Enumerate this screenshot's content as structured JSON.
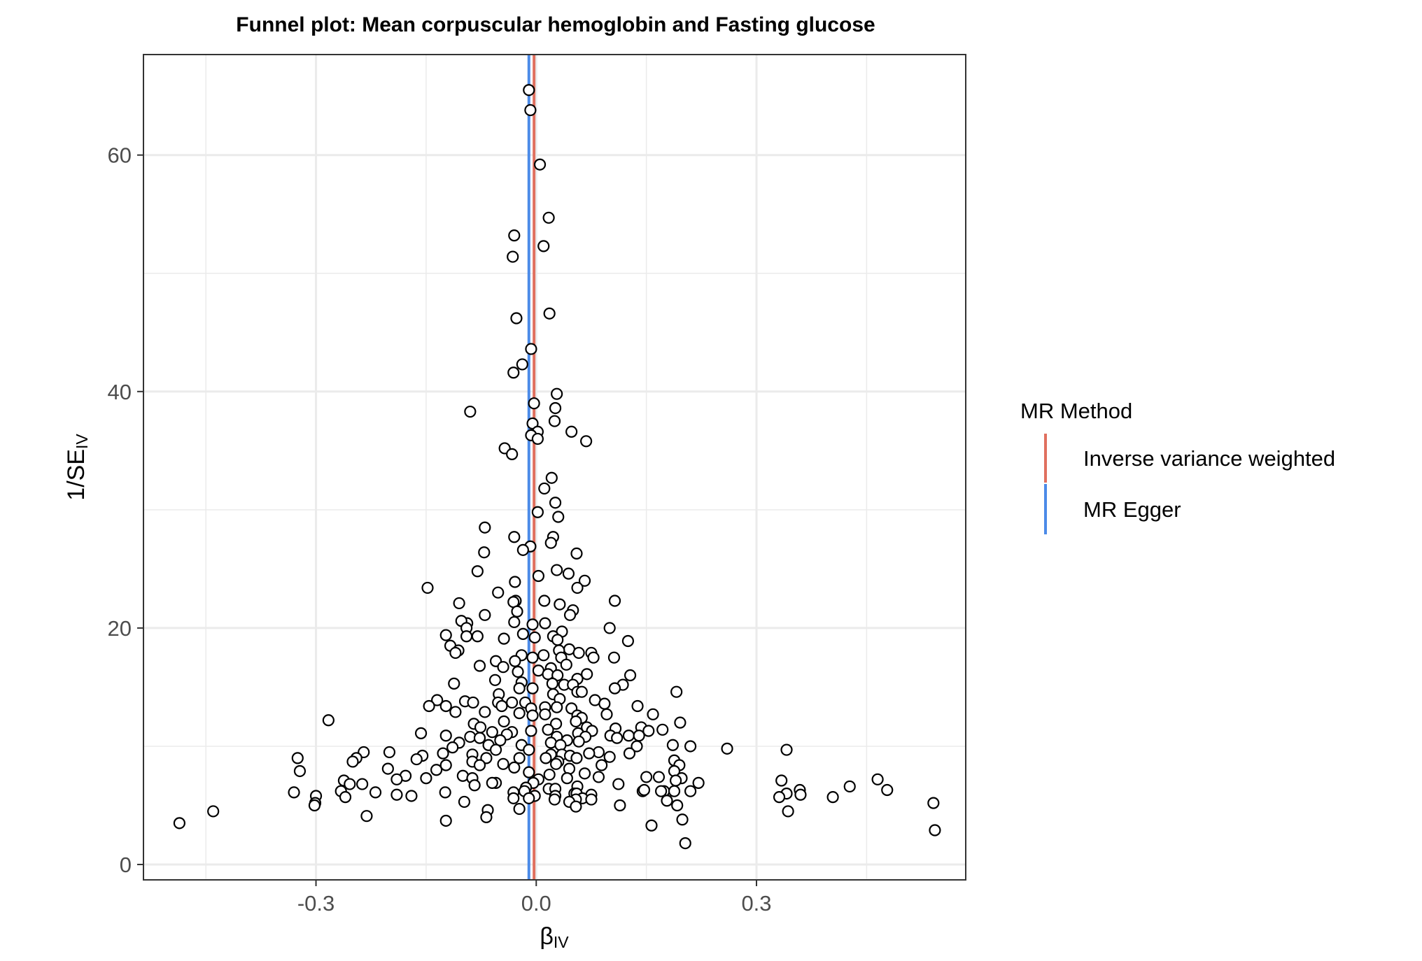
{
  "chart_data": {
    "type": "scatter",
    "title": "Funnel plot: Mean corpuscular hemoglobin and Fasting glucose",
    "xlabel": {
      "main": "β",
      "sub": "IV"
    },
    "ylabel": {
      "main": "1/SE",
      "sub": "IV"
    },
    "xlim": [
      -0.535,
      0.585
    ],
    "ylim": [
      -1.3,
      68.5
    ],
    "x_ticks": [
      -0.3,
      0.0,
      0.3
    ],
    "x_tick_labels": [
      "-0.3",
      "0.0",
      "0.3"
    ],
    "y_ticks": [
      0,
      20,
      40,
      60
    ],
    "y_tick_labels": [
      "0",
      "20",
      "40",
      "60"
    ],
    "grid": true,
    "legend_title": "MR Method",
    "legend_position": "right",
    "reference_lines": [
      {
        "name": "Inverse variance weighted",
        "x": -0.003,
        "color": "#E0705F"
      },
      {
        "name": "MR Egger",
        "x": -0.01,
        "color": "#4C8BE8"
      }
    ],
    "points": [
      [
        -0.01,
        65.5
      ],
      [
        -0.008,
        63.8
      ],
      [
        0.005,
        59.2
      ],
      [
        0.017,
        54.7
      ],
      [
        -0.03,
        53.2
      ],
      [
        -0.032,
        51.4
      ],
      [
        0.01,
        52.3
      ],
      [
        -0.027,
        46.2
      ],
      [
        0.018,
        46.6
      ],
      [
        -0.007,
        43.6
      ],
      [
        -0.019,
        42.3
      ],
      [
        -0.031,
        41.6
      ],
      [
        0.028,
        39.8
      ],
      [
        0.026,
        38.6
      ],
      [
        -0.09,
        38.3
      ],
      [
        -0.003,
        39.0
      ],
      [
        -0.005,
        37.3
      ],
      [
        0.025,
        37.5
      ],
      [
        0.002,
        36.6
      ],
      [
        -0.007,
        36.3
      ],
      [
        0.002,
        36.0
      ],
      [
        0.048,
        36.6
      ],
      [
        0.068,
        35.8
      ],
      [
        -0.043,
        35.2
      ],
      [
        -0.033,
        34.7
      ],
      [
        0.021,
        32.7
      ],
      [
        0.011,
        31.8
      ],
      [
        0.026,
        30.6
      ],
      [
        0.002,
        29.8
      ],
      [
        0.03,
        29.4
      ],
      [
        -0.07,
        28.5
      ],
      [
        -0.03,
        27.7
      ],
      [
        0.023,
        27.7
      ],
      [
        0.02,
        27.2
      ],
      [
        -0.008,
        26.9
      ],
      [
        -0.018,
        26.6
      ],
      [
        -0.071,
        26.4
      ],
      [
        0.055,
        26.3
      ],
      [
        -0.08,
        24.8
      ],
      [
        0.028,
        24.9
      ],
      [
        0.044,
        24.6
      ],
      [
        0.003,
        24.4
      ],
      [
        0.066,
        24.0
      ],
      [
        -0.029,
        23.9
      ],
      [
        -0.148,
        23.4
      ],
      [
        0.056,
        23.4
      ],
      [
        -0.052,
        23.0
      ],
      [
        0.011,
        22.3
      ],
      [
        0.107,
        22.3
      ],
      [
        -0.028,
        22.3
      ],
      [
        -0.105,
        22.1
      ],
      [
        0.032,
        22.0
      ],
      [
        -0.031,
        22.2
      ],
      [
        0.05,
        21.5
      ],
      [
        -0.026,
        21.4
      ],
      [
        0.046,
        21.1
      ],
      [
        -0.07,
        21.1
      ],
      [
        0.012,
        20.4
      ],
      [
        -0.03,
        20.5
      ],
      [
        -0.094,
        20.4
      ],
      [
        -0.102,
        20.6
      ],
      [
        -0.005,
        20.3
      ],
      [
        0.1,
        20.0
      ],
      [
        -0.095,
        20.0
      ],
      [
        0.035,
        19.7
      ],
      [
        -0.123,
        19.4
      ],
      [
        -0.018,
        19.5
      ],
      [
        -0.002,
        19.2
      ],
      [
        -0.095,
        19.3
      ],
      [
        -0.08,
        19.3
      ],
      [
        0.125,
        18.9
      ],
      [
        0.023,
        19.3
      ],
      [
        -0.044,
        19.1
      ],
      [
        0.029,
        19.0
      ],
      [
        -0.117,
        18.5
      ],
      [
        -0.106,
        18.1
      ],
      [
        0.045,
        18.2
      ],
      [
        0.031,
        18.1
      ],
      [
        -0.11,
        17.9
      ],
      [
        0.058,
        17.9
      ],
      [
        0.075,
        17.9
      ],
      [
        -0.02,
        17.7
      ],
      [
        -0.005,
        17.5
      ],
      [
        0.01,
        17.7
      ],
      [
        0.034,
        17.5
      ],
      [
        0.106,
        17.5
      ],
      [
        0.078,
        17.5
      ],
      [
        -0.029,
        17.2
      ],
      [
        -0.055,
        17.2
      ],
      [
        -0.077,
        16.8
      ],
      [
        0.041,
        16.9
      ],
      [
        0.02,
        16.6
      ],
      [
        -0.045,
        16.7
      ],
      [
        0.003,
        16.4
      ],
      [
        -0.025,
        16.3
      ],
      [
        0.016,
        16.1
      ],
      [
        0.029,
        16.0
      ],
      [
        0.069,
        16.1
      ],
      [
        0.128,
        16.0
      ],
      [
        -0.056,
        15.6
      ],
      [
        -0.112,
        15.3
      ],
      [
        0.056,
        15.7
      ],
      [
        -0.02,
        15.4
      ],
      [
        0.022,
        15.3
      ],
      [
        0.038,
        15.2
      ],
      [
        0.05,
        15.2
      ],
      [
        0.118,
        15.2
      ],
      [
        0.107,
        14.9
      ],
      [
        -0.023,
        14.9
      ],
      [
        -0.005,
        14.9
      ],
      [
        0.056,
        14.6
      ],
      [
        -0.051,
        14.4
      ],
      [
        0.062,
        14.6
      ],
      [
        0.191,
        14.6
      ],
      [
        0.023,
        14.4
      ],
      [
        -0.135,
        13.9
      ],
      [
        0.032,
        14.0
      ],
      [
        -0.052,
        13.7
      ],
      [
        -0.097,
        13.8
      ],
      [
        -0.086,
        13.7
      ],
      [
        0.08,
        13.9
      ],
      [
        -0.015,
        13.7
      ],
      [
        -0.033,
        13.7
      ],
      [
        -0.146,
        13.4
      ],
      [
        0.093,
        13.6
      ],
      [
        -0.123,
        13.4
      ],
      [
        0.138,
        13.4
      ],
      [
        0.028,
        13.3
      ],
      [
        -0.007,
        13.2
      ],
      [
        -0.047,
        13.4
      ],
      [
        0.012,
        13.3
      ],
      [
        0.048,
        13.2
      ],
      [
        -0.07,
        12.9
      ],
      [
        -0.023,
        12.8
      ],
      [
        -0.11,
        12.9
      ],
      [
        0.056,
        12.6
      ],
      [
        0.062,
        12.4
      ],
      [
        0.159,
        12.7
      ],
      [
        0.096,
        12.7
      ],
      [
        0.012,
        12.7
      ],
      [
        -0.005,
        12.6
      ],
      [
        -0.283,
        12.2
      ],
      [
        0.196,
        12.0
      ],
      [
        -0.044,
        12.1
      ],
      [
        0.054,
        12.1
      ],
      [
        0.027,
        11.9
      ],
      [
        -0.085,
        11.9
      ],
      [
        0.069,
        11.6
      ],
      [
        0.143,
        11.6
      ],
      [
        -0.076,
        11.6
      ],
      [
        0.108,
        11.5
      ],
      [
        0.016,
        11.4
      ],
      [
        0.153,
        11.3
      ],
      [
        -0.06,
        11.2
      ],
      [
        -0.033,
        11.2
      ],
      [
        0.076,
        11.3
      ],
      [
        0.172,
        11.4
      ],
      [
        -0.007,
        11.3
      ],
      [
        -0.157,
        11.1
      ],
      [
        0.057,
        11.1
      ],
      [
        -0.04,
        11.0
      ],
      [
        0.126,
        10.9
      ],
      [
        -0.123,
        10.9
      ],
      [
        0.14,
        10.9
      ],
      [
        -0.09,
        10.8
      ],
      [
        0.028,
        10.8
      ],
      [
        0.101,
        10.9
      ],
      [
        0.067,
        10.8
      ],
      [
        0.11,
        10.7
      ],
      [
        -0.077,
        10.7
      ],
      [
        0.042,
        10.5
      ],
      [
        -0.049,
        10.5
      ],
      [
        -0.105,
        10.3
      ],
      [
        0.02,
        10.3
      ],
      [
        0.058,
        10.4
      ],
      [
        -0.02,
        10.1
      ],
      [
        0.033,
        10.1
      ],
      [
        -0.065,
        10.1
      ],
      [
        0.186,
        10.1
      ],
      [
        0.21,
        10.0
      ],
      [
        0.137,
        10.0
      ],
      [
        -0.114,
        9.9
      ],
      [
        0.26,
        9.8
      ],
      [
        0.341,
        9.7
      ],
      [
        -0.055,
        9.7
      ],
      [
        -0.01,
        9.7
      ],
      [
        0.085,
        9.5
      ],
      [
        -0.2,
        9.5
      ],
      [
        -0.235,
        9.5
      ],
      [
        0.072,
        9.4
      ],
      [
        0.127,
        9.4
      ],
      [
        -0.127,
        9.4
      ],
      [
        0.035,
        9.3
      ],
      [
        0.02,
        9.3
      ],
      [
        -0.155,
        9.2
      ],
      [
        -0.087,
        9.3
      ],
      [
        0.046,
        9.2
      ],
      [
        0.1,
        9.1
      ],
      [
        -0.325,
        9.0
      ],
      [
        -0.245,
        9.0
      ],
      [
        -0.068,
        9.0
      ],
      [
        -0.023,
        9.0
      ],
      [
        0.055,
        9.0
      ],
      [
        0.013,
        9.0
      ],
      [
        -0.163,
        8.9
      ],
      [
        0.188,
        8.8
      ],
      [
        -0.25,
        8.7
      ],
      [
        -0.087,
        8.7
      ],
      [
        0.03,
        8.7
      ],
      [
        -0.045,
        8.5
      ],
      [
        0.027,
        8.5
      ],
      [
        -0.077,
        8.4
      ],
      [
        -0.123,
        8.4
      ],
      [
        0.195,
        8.4
      ],
      [
        0.089,
        8.4
      ],
      [
        -0.202,
        8.1
      ],
      [
        -0.03,
        8.2
      ],
      [
        -0.136,
        8.0
      ],
      [
        0.045,
        8.1
      ],
      [
        -0.322,
        7.9
      ],
      [
        0.188,
        7.9
      ],
      [
        -0.01,
        7.8
      ],
      [
        0.066,
        7.7
      ],
      [
        0.018,
        7.6
      ],
      [
        -0.178,
        7.5
      ],
      [
        0.15,
        7.4
      ],
      [
        -0.1,
        7.5
      ],
      [
        0.085,
        7.4
      ],
      [
        0.167,
        7.4
      ],
      [
        -0.087,
        7.3
      ],
      [
        -0.15,
        7.3
      ],
      [
        -0.19,
        7.2
      ],
      [
        0.003,
        7.2
      ],
      [
        0.042,
        7.3
      ],
      [
        0.198,
        7.3
      ],
      [
        0.19,
        7.1
      ],
      [
        0.334,
        7.1
      ],
      [
        0.465,
        7.2
      ],
      [
        -0.262,
        7.1
      ],
      [
        -0.055,
        6.9
      ],
      [
        -0.06,
        6.9
      ],
      [
        0.221,
        6.9
      ],
      [
        -0.004,
        6.9
      ],
      [
        -0.254,
        6.8
      ],
      [
        -0.237,
        6.8
      ],
      [
        0.112,
        6.8
      ],
      [
        0.427,
        6.6
      ],
      [
        0.056,
        6.6
      ],
      [
        -0.084,
        6.7
      ],
      [
        -0.014,
        6.5
      ],
      [
        0.017,
        6.4
      ],
      [
        0.026,
        6.4
      ],
      [
        0.359,
        6.3
      ],
      [
        0.478,
        6.3
      ],
      [
        -0.266,
        6.2
      ],
      [
        0.174,
        6.2
      ],
      [
        0.21,
        6.2
      ],
      [
        0.17,
        6.2
      ],
      [
        0.145,
        6.2
      ],
      [
        -0.016,
        6.2
      ],
      [
        -0.33,
        6.1
      ],
      [
        -0.031,
        6.1
      ],
      [
        -0.219,
        6.1
      ],
      [
        0.052,
        6.0
      ],
      [
        -0.124,
        6.1
      ],
      [
        0.055,
        6.0
      ],
      [
        0.341,
        6.0
      ],
      [
        -0.19,
        5.9
      ],
      [
        0.36,
        5.9
      ],
      [
        0.147,
        6.3
      ],
      [
        0.188,
        6.2
      ],
      [
        0.075,
        5.9
      ],
      [
        -0.3,
        5.8
      ],
      [
        -0.26,
        5.7
      ],
      [
        -0.17,
        5.8
      ],
      [
        0.026,
        5.8
      ],
      [
        -0.002,
        5.8
      ],
      [
        0.404,
        5.7
      ],
      [
        0.331,
        5.7
      ],
      [
        -0.031,
        5.6
      ],
      [
        -0.01,
        5.6
      ],
      [
        0.063,
        5.6
      ],
      [
        0.075,
        5.5
      ],
      [
        0.054,
        5.5
      ],
      [
        0.025,
        5.5
      ],
      [
        0.178,
        5.4
      ],
      [
        0.045,
        5.3
      ],
      [
        -0.098,
        5.3
      ],
      [
        -0.301,
        5.2
      ],
      [
        0.541,
        5.2
      ],
      [
        0.192,
        5.0
      ],
      [
        -0.302,
        5.0
      ],
      [
        0.114,
        5.0
      ],
      [
        0.054,
        4.9
      ],
      [
        -0.023,
        4.7
      ],
      [
        -0.066,
        4.6
      ],
      [
        0.343,
        4.5
      ],
      [
        -0.44,
        4.5
      ],
      [
        -0.231,
        4.1
      ],
      [
        -0.068,
        4.0
      ],
      [
        0.199,
        3.8
      ],
      [
        -0.123,
        3.7
      ],
      [
        -0.486,
        3.5
      ],
      [
        0.157,
        3.3
      ],
      [
        0.543,
        2.9
      ],
      [
        0.203,
        1.8
      ]
    ]
  }
}
